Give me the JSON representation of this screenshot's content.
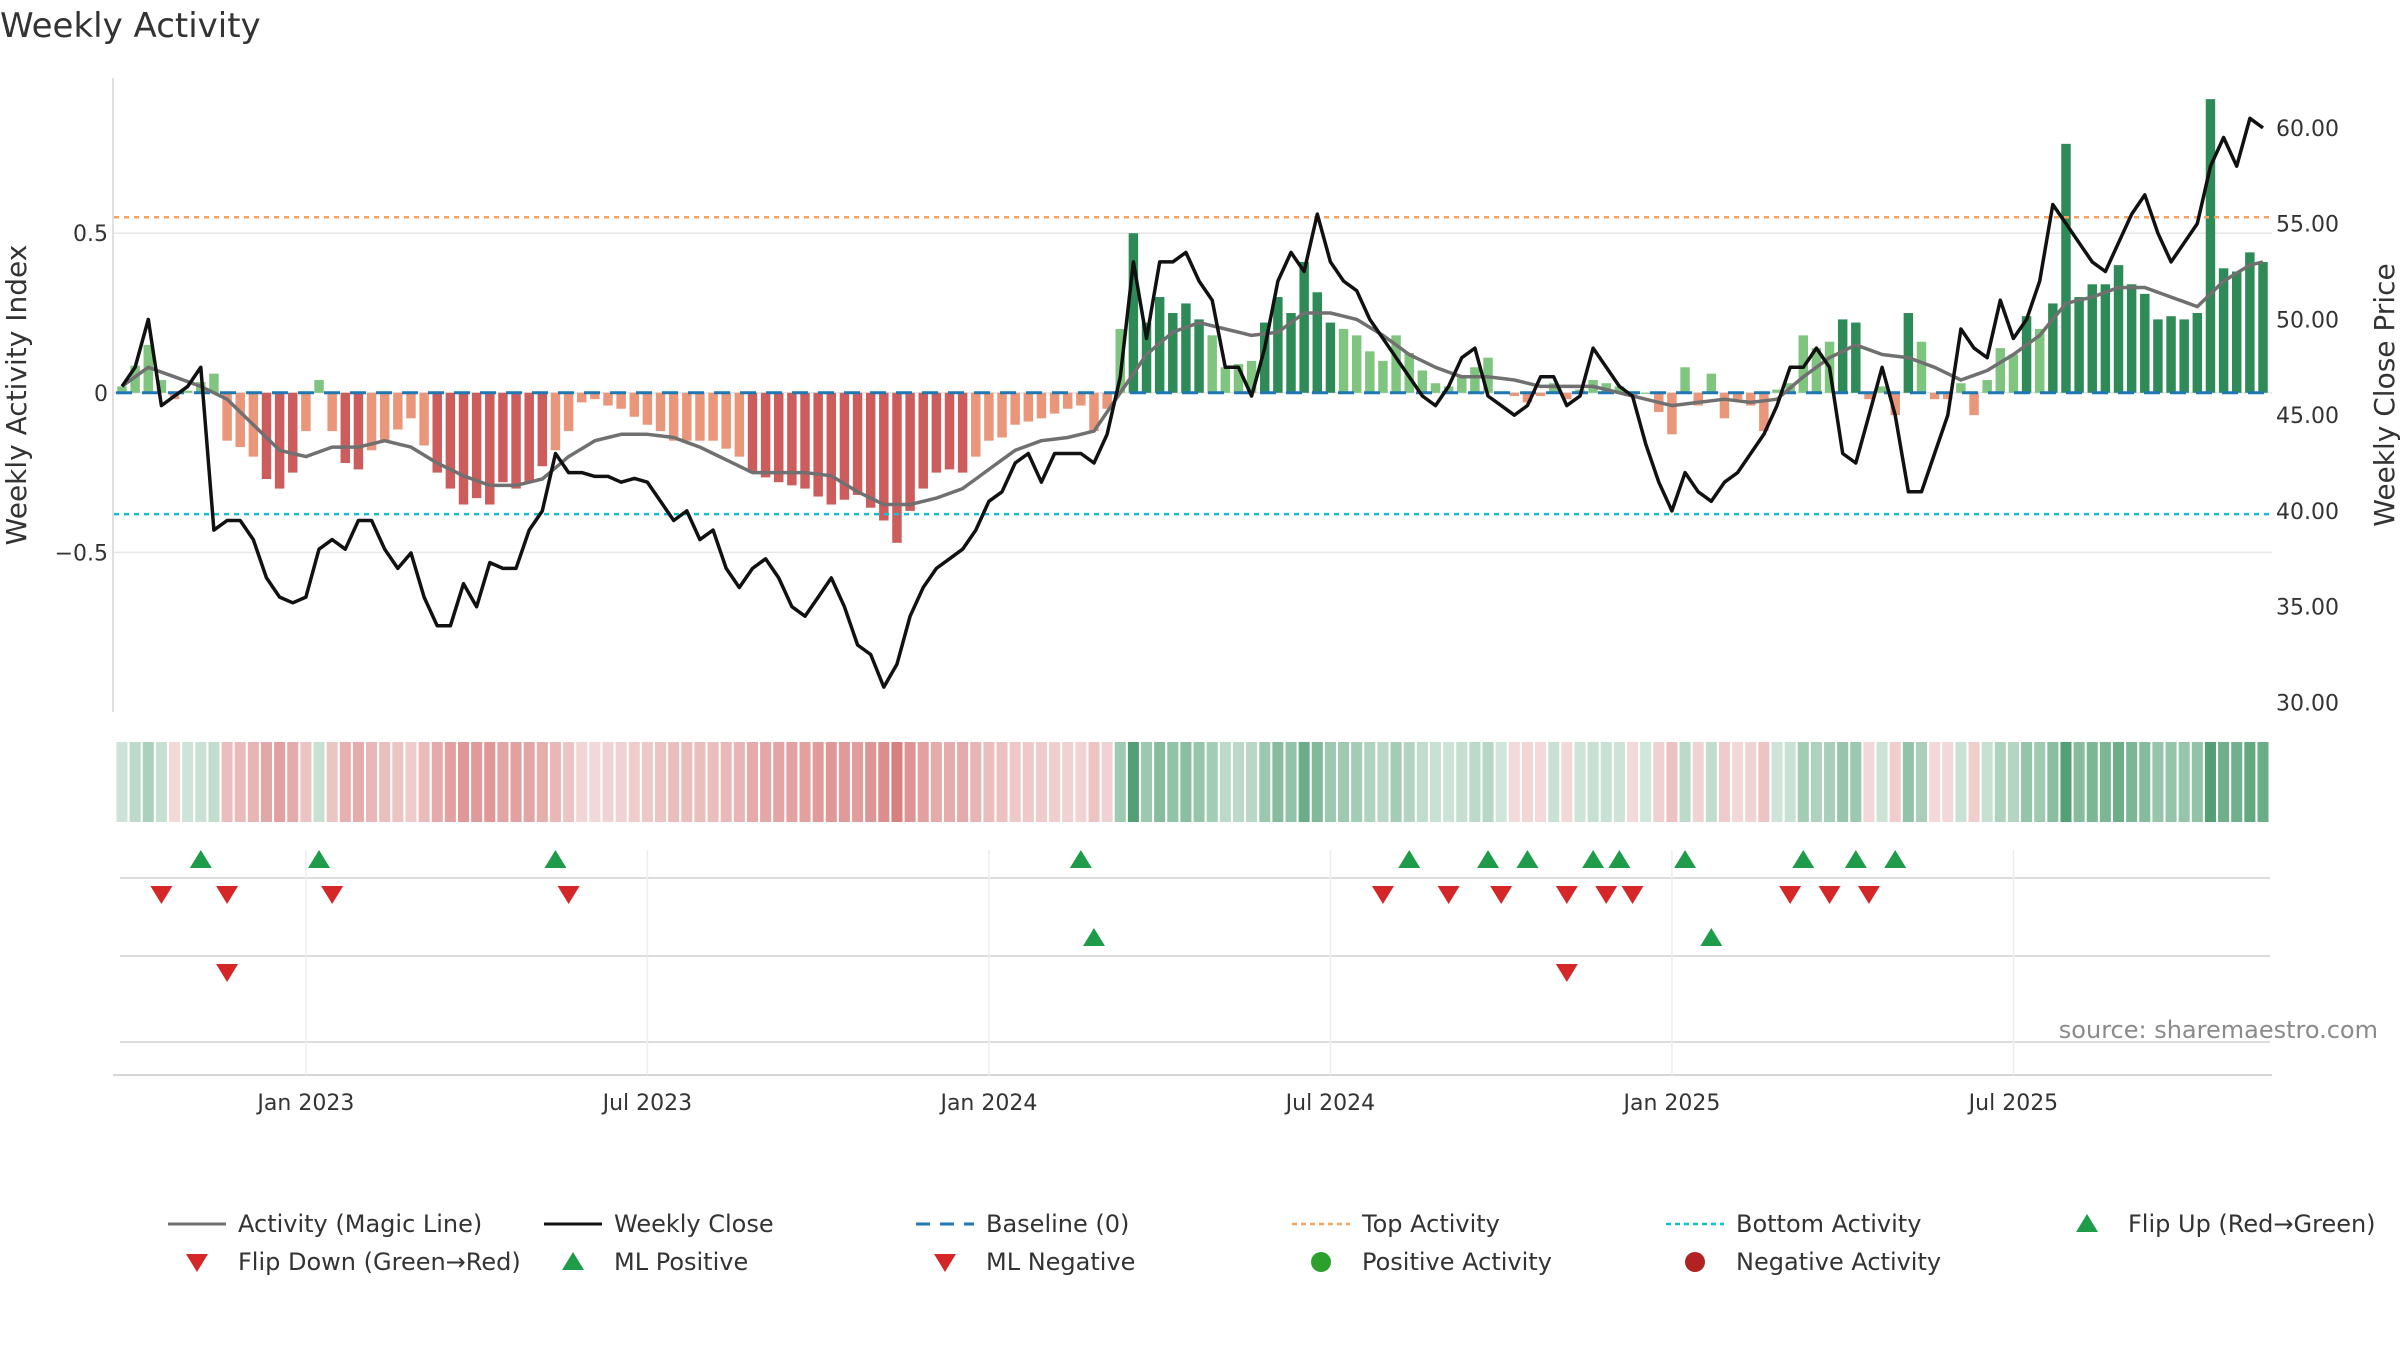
{
  "colors": {
    "green_dark": "#2e8b57",
    "green_light": "#7fc47f",
    "red_dark": "#cd5c5c",
    "red_light": "#e9967a",
    "magic_line": "#707070",
    "close_line": "#111111",
    "baseline": "#1f77b4",
    "top_line": "#f4a460",
    "bottom_line": "#17becf",
    "marker_green": "#1f9c4a",
    "marker_red": "#d62728",
    "pos_dot": "#2ca02c",
    "neg_dot": "#b22222",
    "grid": "#e6e6e6",
    "source": "#8a8a8a"
  },
  "chart_data": {
    "type": "bar+line",
    "title": "Weekly Activity",
    "ylabel_left": "Weekly Activity Index",
    "ylabel_right": "Weekly Close Price",
    "left_ticks": [
      "0.5",
      "0",
      "−0.5"
    ],
    "left_tick_values": [
      0.5,
      0,
      -0.5
    ],
    "left_ylim": [
      -1.0,
      0.98
    ],
    "right_ticks": [
      "60.00",
      "55.00",
      "50.00",
      "45.00",
      "40.00",
      "35.00",
      "30.00"
    ],
    "right_tick_values": [
      60,
      55,
      50,
      45,
      40,
      35,
      30
    ],
    "right_ylim": [
      29.5,
      62.5
    ],
    "x_tick_labels": [
      "Jan 2023",
      "Jul 2023",
      "Jan 2024",
      "Jul 2024",
      "Jan 2025",
      "Jul 2025"
    ],
    "x_tick_weeks": [
      14,
      40,
      66,
      92,
      118,
      144
    ],
    "weeks": 157,
    "top_activity": 0.55,
    "bottom_activity": -0.38,
    "activity_anchors": [
      [
        0,
        0.02
      ],
      [
        2,
        0.15
      ],
      [
        3,
        0.04
      ],
      [
        4,
        -0.02
      ],
      [
        7,
        0.06
      ],
      [
        8,
        -0.15
      ],
      [
        9,
        -0.17
      ],
      [
        10,
        -0.2
      ],
      [
        11,
        -0.27
      ],
      [
        12,
        -0.3
      ],
      [
        13,
        -0.25
      ],
      [
        14,
        -0.12
      ],
      [
        15,
        0.04
      ],
      [
        16,
        -0.12
      ],
      [
        17,
        -0.22
      ],
      [
        18,
        -0.24
      ],
      [
        19,
        -0.18
      ],
      [
        20,
        -0.15
      ],
      [
        22,
        -0.08
      ],
      [
        24,
        -0.25
      ],
      [
        25,
        -0.3
      ],
      [
        26,
        -0.35
      ],
      [
        27,
        -0.33
      ],
      [
        28,
        -0.35
      ],
      [
        29,
        -0.28
      ],
      [
        30,
        -0.3
      ],
      [
        31,
        -0.28
      ],
      [
        32,
        -0.23
      ],
      [
        33,
        -0.18
      ],
      [
        34,
        -0.12
      ],
      [
        35,
        -0.03
      ],
      [
        36,
        -0.02
      ],
      [
        37,
        -0.04
      ],
      [
        38,
        -0.05
      ],
      [
        40,
        -0.1
      ],
      [
        41,
        -0.12
      ],
      [
        42,
        -0.15
      ],
      [
        45,
        -0.15
      ],
      [
        47,
        -0.2
      ],
      [
        48,
        -0.25
      ],
      [
        50,
        -0.28
      ],
      [
        52,
        -0.3
      ],
      [
        54,
        -0.35
      ],
      [
        56,
        -0.32
      ],
      [
        57,
        -0.36
      ],
      [
        58,
        -0.4
      ],
      [
        59,
        -0.47
      ],
      [
        60,
        -0.37
      ],
      [
        61,
        -0.3
      ],
      [
        62,
        -0.25
      ],
      [
        63,
        -0.24
      ],
      [
        64,
        -0.25
      ],
      [
        66,
        -0.15
      ],
      [
        67,
        -0.14
      ],
      [
        68,
        -0.1
      ],
      [
        70,
        -0.08
      ],
      [
        72,
        -0.05
      ],
      [
        73,
        -0.04
      ],
      [
        74,
        -0.12
      ],
      [
        75,
        -0.05
      ],
      [
        76,
        0.2
      ],
      [
        77,
        0.5
      ],
      [
        78,
        0.22
      ],
      [
        79,
        0.3
      ],
      [
        80,
        0.25
      ],
      [
        81,
        0.28
      ],
      [
        83,
        0.18
      ],
      [
        84,
        0.08
      ],
      [
        86,
        0.1
      ],
      [
        87,
        0.22
      ],
      [
        88,
        0.3
      ],
      [
        89,
        0.25
      ],
      [
        90,
        0.41
      ],
      [
        92,
        0.22
      ],
      [
        93,
        0.2
      ],
      [
        94,
        0.18
      ],
      [
        95,
        0.13
      ],
      [
        96,
        0.1
      ],
      [
        97,
        0.18
      ],
      [
        99,
        0.07
      ],
      [
        100,
        0.03
      ],
      [
        101,
        0.02
      ],
      [
        102,
        0.05
      ],
      [
        103,
        0.08
      ],
      [
        104,
        0.11
      ],
      [
        105,
        0.0
      ],
      [
        106,
        -0.01
      ],
      [
        107,
        -0.03
      ],
      [
        108,
        -0.01
      ],
      [
        109,
        0.03
      ],
      [
        110,
        -0.02
      ],
      [
        111,
        0.01
      ],
      [
        112,
        0.04
      ],
      [
        114,
        0.02
      ],
      [
        115,
        -0.01
      ],
      [
        116,
        0.0
      ],
      [
        117,
        -0.06
      ],
      [
        118,
        -0.13
      ],
      [
        119,
        0.08
      ],
      [
        120,
        -0.04
      ],
      [
        121,
        0.06
      ],
      [
        122,
        -0.08
      ],
      [
        123,
        -0.02
      ],
      [
        124,
        -0.04
      ],
      [
        125,
        -0.12
      ],
      [
        126,
        0.01
      ],
      [
        127,
        0.03
      ],
      [
        128,
        0.18
      ],
      [
        129,
        0.14
      ],
      [
        130,
        0.16
      ],
      [
        131,
        0.23
      ],
      [
        132,
        0.22
      ],
      [
        133,
        -0.02
      ],
      [
        134,
        0.02
      ],
      [
        135,
        -0.07
      ],
      [
        136,
        0.25
      ],
      [
        137,
        0.16
      ],
      [
        138,
        -0.02
      ],
      [
        139,
        -0.02
      ],
      [
        140,
        0.03
      ],
      [
        141,
        -0.07
      ],
      [
        142,
        0.04
      ],
      [
        143,
        0.14
      ],
      [
        144,
        0.12
      ],
      [
        145,
        0.24
      ],
      [
        146,
        0.2
      ],
      [
        147,
        0.28
      ],
      [
        148,
        0.78
      ],
      [
        149,
        0.3
      ],
      [
        150,
        0.34
      ],
      [
        151,
        0.34
      ],
      [
        152,
        0.4
      ],
      [
        153,
        0.34
      ],
      [
        154,
        0.31
      ],
      [
        155,
        0.23
      ],
      [
        156,
        0.24
      ],
      [
        157,
        0.23
      ],
      [
        158,
        0.25
      ],
      [
        159,
        0.92
      ],
      [
        160,
        0.39
      ],
      [
        161,
        0.38
      ],
      [
        162,
        0.44
      ],
      [
        163,
        0.41
      ]
    ],
    "magic_line_anchors": [
      [
        0,
        0.02
      ],
      [
        2,
        0.08
      ],
      [
        4,
        0.05
      ],
      [
        6,
        0.02
      ],
      [
        8,
        -0.02
      ],
      [
        10,
        -0.1
      ],
      [
        12,
        -0.18
      ],
      [
        14,
        -0.2
      ],
      [
        16,
        -0.17
      ],
      [
        18,
        -0.17
      ],
      [
        20,
        -0.15
      ],
      [
        22,
        -0.17
      ],
      [
        24,
        -0.22
      ],
      [
        26,
        -0.26
      ],
      [
        28,
        -0.29
      ],
      [
        30,
        -0.29
      ],
      [
        32,
        -0.27
      ],
      [
        34,
        -0.2
      ],
      [
        36,
        -0.15
      ],
      [
        38,
        -0.13
      ],
      [
        40,
        -0.13
      ],
      [
        42,
        -0.14
      ],
      [
        44,
        -0.17
      ],
      [
        46,
        -0.21
      ],
      [
        48,
        -0.25
      ],
      [
        50,
        -0.25
      ],
      [
        52,
        -0.25
      ],
      [
        54,
        -0.26
      ],
      [
        56,
        -0.31
      ],
      [
        58,
        -0.35
      ],
      [
        60,
        -0.35
      ],
      [
        62,
        -0.33
      ],
      [
        64,
        -0.3
      ],
      [
        66,
        -0.24
      ],
      [
        68,
        -0.18
      ],
      [
        70,
        -0.15
      ],
      [
        72,
        -0.14
      ],
      [
        74,
        -0.12
      ],
      [
        76,
        0.0
      ],
      [
        78,
        0.12
      ],
      [
        80,
        0.19
      ],
      [
        82,
        0.22
      ],
      [
        84,
        0.2
      ],
      [
        86,
        0.18
      ],
      [
        88,
        0.19
      ],
      [
        90,
        0.25
      ],
      [
        92,
        0.25
      ],
      [
        94,
        0.23
      ],
      [
        96,
        0.18
      ],
      [
        98,
        0.12
      ],
      [
        100,
        0.08
      ],
      [
        102,
        0.05
      ],
      [
        104,
        0.05
      ],
      [
        106,
        0.04
      ],
      [
        108,
        0.02
      ],
      [
        110,
        0.02
      ],
      [
        112,
        0.02
      ],
      [
        114,
        0.0
      ],
      [
        116,
        -0.02
      ],
      [
        118,
        -0.04
      ],
      [
        120,
        -0.03
      ],
      [
        122,
        -0.02
      ],
      [
        124,
        -0.03
      ],
      [
        126,
        -0.02
      ],
      [
        128,
        0.05
      ],
      [
        130,
        0.11
      ],
      [
        132,
        0.15
      ],
      [
        134,
        0.12
      ],
      [
        136,
        0.11
      ],
      [
        138,
        0.08
      ],
      [
        140,
        0.04
      ],
      [
        142,
        0.07
      ],
      [
        144,
        0.12
      ],
      [
        146,
        0.18
      ],
      [
        148,
        0.28
      ],
      [
        150,
        0.3
      ],
      [
        152,
        0.33
      ],
      [
        154,
        0.33
      ],
      [
        156,
        0.3
      ],
      [
        158,
        0.27
      ],
      [
        160,
        0.35
      ],
      [
        162,
        0.4
      ],
      [
        163,
        0.41
      ]
    ],
    "close_anchors": [
      [
        0,
        46.5
      ],
      [
        1,
        47.5
      ],
      [
        2,
        50
      ],
      [
        3,
        45.5
      ],
      [
        4,
        46
      ],
      [
        5,
        46.5
      ],
      [
        6,
        47.5
      ],
      [
        7,
        39
      ],
      [
        8,
        39.5
      ],
      [
        9,
        39.5
      ],
      [
        10,
        38.5
      ],
      [
        11,
        36.5
      ],
      [
        12,
        35.5
      ],
      [
        13,
        35.2
      ],
      [
        14,
        35.5
      ],
      [
        15,
        38
      ],
      [
        16,
        38.5
      ],
      [
        17,
        38
      ],
      [
        18,
        39.5
      ],
      [
        19,
        39.5
      ],
      [
        20,
        38
      ],
      [
        21,
        37
      ],
      [
        22,
        37.8
      ],
      [
        23,
        35.5
      ],
      [
        24,
        34
      ],
      [
        25,
        34
      ],
      [
        26,
        36.2
      ],
      [
        27,
        35
      ],
      [
        28,
        37.3
      ],
      [
        29,
        37
      ],
      [
        30,
        37
      ],
      [
        31,
        39
      ],
      [
        32,
        40
      ],
      [
        33,
        43
      ],
      [
        34,
        42
      ],
      [
        35,
        42
      ],
      [
        36,
        41.8
      ],
      [
        37,
        41.8
      ],
      [
        38,
        41.5
      ],
      [
        39,
        41.7
      ],
      [
        40,
        41.5
      ],
      [
        41,
        40.5
      ],
      [
        42,
        39.5
      ],
      [
        43,
        40
      ],
      [
        44,
        38.5
      ],
      [
        45,
        39
      ],
      [
        46,
        37
      ],
      [
        47,
        36
      ],
      [
        48,
        37
      ],
      [
        49,
        37.5
      ],
      [
        50,
        36.5
      ],
      [
        51,
        35
      ],
      [
        52,
        34.5
      ],
      [
        53,
        35.5
      ],
      [
        54,
        36.5
      ],
      [
        55,
        35
      ],
      [
        56,
        33
      ],
      [
        57,
        32.5
      ],
      [
        58,
        30.8
      ],
      [
        59,
        32
      ],
      [
        60,
        34.5
      ],
      [
        61,
        36
      ],
      [
        62,
        37
      ],
      [
        63,
        37.5
      ],
      [
        64,
        38
      ],
      [
        65,
        39
      ],
      [
        66,
        40.5
      ],
      [
        67,
        41
      ],
      [
        68,
        42.5
      ],
      [
        69,
        43
      ],
      [
        70,
        41.5
      ],
      [
        71,
        43
      ],
      [
        72,
        43
      ],
      [
        73,
        43
      ],
      [
        74,
        42.5
      ],
      [
        75,
        44
      ],
      [
        76,
        47
      ],
      [
        77,
        53
      ],
      [
        78,
        49
      ],
      [
        79,
        53
      ],
      [
        80,
        53
      ],
      [
        81,
        53.5
      ],
      [
        82,
        52
      ],
      [
        83,
        51
      ],
      [
        84,
        47.5
      ],
      [
        85,
        47.5
      ],
      [
        86,
        46
      ],
      [
        87,
        48.5
      ],
      [
        88,
        52
      ],
      [
        89,
        53.5
      ],
      [
        90,
        52.5
      ],
      [
        91,
        55.5
      ],
      [
        92,
        53
      ],
      [
        93,
        52
      ],
      [
        94,
        51.5
      ],
      [
        95,
        50
      ],
      [
        96,
        49
      ],
      [
        97,
        48
      ],
      [
        98,
        47
      ],
      [
        99,
        46
      ],
      [
        100,
        45.5
      ],
      [
        101,
        46.5
      ],
      [
        102,
        48
      ],
      [
        103,
        48.5
      ],
      [
        104,
        46
      ],
      [
        105,
        45.5
      ],
      [
        106,
        45
      ],
      [
        107,
        45.5
      ],
      [
        108,
        47
      ],
      [
        109,
        47
      ],
      [
        110,
        45.5
      ],
      [
        111,
        46
      ],
      [
        112,
        48.5
      ],
      [
        113,
        47.5
      ],
      [
        114,
        46.5
      ],
      [
        115,
        46
      ],
      [
        116,
        43.5
      ],
      [
        117,
        41.5
      ],
      [
        118,
        40
      ],
      [
        119,
        42
      ],
      [
        120,
        41
      ],
      [
        121,
        40.5
      ],
      [
        122,
        41.5
      ],
      [
        123,
        42
      ],
      [
        124,
        43
      ],
      [
        125,
        44
      ],
      [
        126,
        45.5
      ],
      [
        127,
        47.5
      ],
      [
        128,
        47.5
      ],
      [
        129,
        48.5
      ],
      [
        130,
        47.5
      ],
      [
        131,
        43
      ],
      [
        132,
        42.5
      ],
      [
        133,
        45
      ],
      [
        134,
        47.5
      ],
      [
        135,
        45
      ],
      [
        136,
        41
      ],
      [
        137,
        41
      ],
      [
        138,
        43
      ],
      [
        139,
        45
      ],
      [
        140,
        49.5
      ],
      [
        141,
        48.5
      ],
      [
        142,
        48
      ],
      [
        143,
        51
      ],
      [
        144,
        49
      ],
      [
        145,
        50
      ],
      [
        146,
        52
      ],
      [
        147,
        56
      ],
      [
        148,
        55
      ],
      [
        149,
        54
      ],
      [
        150,
        53
      ],
      [
        151,
        52.5
      ],
      [
        152,
        54
      ],
      [
        153,
        55.5
      ],
      [
        154,
        56.5
      ],
      [
        155,
        54.5
      ],
      [
        156,
        53
      ],
      [
        157,
        54
      ],
      [
        158,
        55
      ],
      [
        159,
        58
      ],
      [
        160,
        59.5
      ],
      [
        161,
        58
      ],
      [
        162,
        60.5
      ],
      [
        163,
        60
      ]
    ],
    "ribbon_note": "intensity strip colored per week by activity sign and magnitude",
    "flip_up_weeks": [
      6,
      15,
      33,
      73,
      98,
      104,
      107,
      112,
      114,
      119,
      128,
      132,
      135
    ],
    "flip_down_weeks": [
      3,
      8,
      16,
      34,
      96,
      101,
      105,
      110,
      113,
      115,
      127,
      130,
      133
    ],
    "ml_positive_weeks": [
      74,
      121
    ],
    "ml_negative_weeks": [
      8,
      110
    ],
    "legend": [
      {
        "label": "Activity (Magic Line)",
        "kind": "line-gray"
      },
      {
        "label": "Weekly Close",
        "kind": "line-black"
      },
      {
        "label": "Baseline (0)",
        "kind": "dash-blue"
      },
      {
        "label": "Top Activity",
        "kind": "dot-orange"
      },
      {
        "label": "Bottom Activity",
        "kind": "dot-cyan"
      },
      {
        "label": "Flip Up (Red→Green)",
        "kind": "tri-up-green"
      },
      {
        "label": "Flip Down (Green→Red)",
        "kind": "tri-down-red"
      },
      {
        "label": "ML Positive",
        "kind": "tri-up-green"
      },
      {
        "label": "ML Negative",
        "kind": "tri-down-red"
      },
      {
        "label": "Positive Activity",
        "kind": "dot-green"
      },
      {
        "label": "Negative Activity",
        "kind": "dot-red"
      }
    ],
    "source": "source: sharemaestro.com"
  }
}
